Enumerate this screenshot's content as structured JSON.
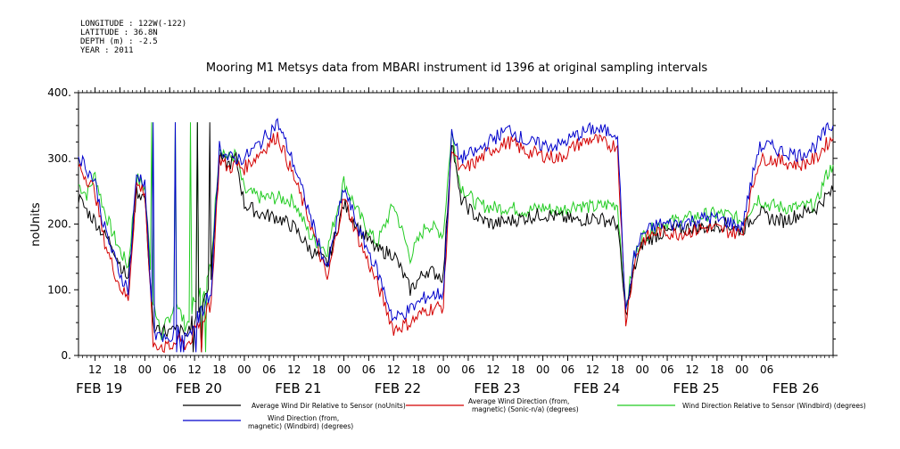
{
  "header": {
    "meta_lines": [
      "LONGITUDE : 122W(-122)",
      "LATITUDE : 36.8N",
      "DEPTH (m) : -2.5",
      "YEAR : 2011"
    ],
    "title": "Mooring M1 Metsys data from MBARI instrument id 1396 at original sampling intervals"
  },
  "chart_data": {
    "type": "line",
    "title": "Mooring M1 Metsys data from MBARI instrument id 1396 at original sampling intervals",
    "ylabel": "noUnits",
    "xlabel": "",
    "ylim": [
      0,
      400
    ],
    "yticks": [
      0,
      100,
      200,
      300,
      400
    ],
    "xlim_hours": [
      0,
      182
    ],
    "x_unit_note": "time in 2011, Feb 19 ~08:00 to Feb 26 ~12:00",
    "hour_tick_labels": [
      "12",
      "18",
      "00",
      "06",
      "12",
      "18",
      "00",
      "06",
      "12",
      "18",
      "00",
      "06",
      "12",
      "18",
      "00",
      "06",
      "12",
      "18",
      "00",
      "06",
      "12",
      "18",
      "00",
      "06",
      "12",
      "18",
      "00",
      "06"
    ],
    "date_labels": [
      "FEB 19",
      "FEB 20",
      "FEB 21",
      "FEB 22",
      "FEB 23",
      "FEB 24",
      "FEB 25",
      "FEB 26"
    ],
    "grid": false,
    "legend_position": "bottom",
    "series": [
      {
        "name": "Average Wind Dir Relative to Sensor (noUnits)",
        "color": "#000000",
        "points": [
          [
            0,
            240
          ],
          [
            2,
            220
          ],
          [
            4,
            205
          ],
          [
            6,
            185
          ],
          [
            8,
            170
          ],
          [
            10,
            140
          ],
          [
            12,
            115
          ],
          [
            14,
            250
          ],
          [
            16,
            240
          ],
          [
            18,
            45
          ],
          [
            20,
            40
          ],
          [
            22,
            35
          ],
          [
            24,
            40
          ],
          [
            26,
            30
          ],
          [
            28,
            60
          ],
          [
            30,
            80
          ],
          [
            32,
            120
          ],
          [
            34,
            300
          ],
          [
            36,
            290
          ],
          [
            38,
            300
          ],
          [
            40,
            230
          ],
          [
            44,
            215
          ],
          [
            48,
            210
          ],
          [
            52,
            195
          ],
          [
            56,
            160
          ],
          [
            60,
            140
          ],
          [
            64,
            230
          ],
          [
            68,
            190
          ],
          [
            72,
            160
          ],
          [
            76,
            155
          ],
          [
            80,
            100
          ],
          [
            84,
            130
          ],
          [
            88,
            120
          ],
          [
            90,
            330
          ],
          [
            92,
            240
          ],
          [
            96,
            210
          ],
          [
            100,
            200
          ],
          [
            104,
            205
          ],
          [
            108,
            210
          ],
          [
            112,
            215
          ],
          [
            116,
            210
          ],
          [
            120,
            205
          ],
          [
            124,
            210
          ],
          [
            128,
            205
          ],
          [
            130,
            200
          ],
          [
            132,
            60
          ],
          [
            134,
            130
          ],
          [
            136,
            170
          ],
          [
            140,
            185
          ],
          [
            144,
            190
          ],
          [
            148,
            195
          ],
          [
            152,
            195
          ],
          [
            156,
            200
          ],
          [
            160,
            190
          ],
          [
            164,
            220
          ],
          [
            166,
            210
          ],
          [
            170,
            205
          ],
          [
            174,
            215
          ],
          [
            178,
            225
          ],
          [
            180,
            240
          ],
          [
            182,
            250
          ]
        ]
      },
      {
        "name": "Average Wind Direction (from, magnetic) (Sonic-n/a) (degrees)",
        "color": "#d40000",
        "points": [
          [
            0,
            290
          ],
          [
            2,
            270
          ],
          [
            4,
            250
          ],
          [
            6,
            180
          ],
          [
            8,
            140
          ],
          [
            10,
            105
          ],
          [
            12,
            85
          ],
          [
            14,
            260
          ],
          [
            16,
            250
          ],
          [
            18,
            20
          ],
          [
            20,
            15
          ],
          [
            22,
            10
          ],
          [
            24,
            25
          ],
          [
            26,
            15
          ],
          [
            28,
            35
          ],
          [
            30,
            55
          ],
          [
            32,
            80
          ],
          [
            34,
            300
          ],
          [
            36,
            285
          ],
          [
            38,
            290
          ],
          [
            40,
            285
          ],
          [
            44,
            310
          ],
          [
            48,
            335
          ],
          [
            52,
            270
          ],
          [
            56,
            200
          ],
          [
            60,
            115
          ],
          [
            64,
            240
          ],
          [
            68,
            170
          ],
          [
            72,
            110
          ],
          [
            76,
            40
          ],
          [
            80,
            50
          ],
          [
            84,
            70
          ],
          [
            88,
            75
          ],
          [
            90,
            320
          ],
          [
            92,
            280
          ],
          [
            96,
            295
          ],
          [
            100,
            315
          ],
          [
            104,
            325
          ],
          [
            108,
            310
          ],
          [
            112,
            305
          ],
          [
            116,
            300
          ],
          [
            120,
            320
          ],
          [
            124,
            330
          ],
          [
            128,
            320
          ],
          [
            130,
            320
          ],
          [
            132,
            50
          ],
          [
            134,
            140
          ],
          [
            136,
            175
          ],
          [
            140,
            190
          ],
          [
            144,
            185
          ],
          [
            148,
            190
          ],
          [
            152,
            195
          ],
          [
            156,
            190
          ],
          [
            160,
            185
          ],
          [
            164,
            295
          ],
          [
            166,
            300
          ],
          [
            170,
            295
          ],
          [
            174,
            290
          ],
          [
            178,
            300
          ],
          [
            180,
            320
          ],
          [
            182,
            330
          ]
        ]
      },
      {
        "name": "Wind Direction Relative to Sensor (Windbird) (degrees)",
        "color": "#22cc22",
        "points": [
          [
            0,
            260
          ],
          [
            2,
            245
          ],
          [
            4,
            275
          ],
          [
            6,
            225
          ],
          [
            8,
            190
          ],
          [
            10,
            160
          ],
          [
            12,
            135
          ],
          [
            14,
            270
          ],
          [
            16,
            255
          ],
          [
            18,
            80
          ],
          [
            20,
            30
          ],
          [
            22,
            60
          ],
          [
            24,
            80
          ],
          [
            26,
            40
          ],
          [
            28,
            90
          ],
          [
            30,
            100
          ],
          [
            32,
            140
          ],
          [
            34,
            320
          ],
          [
            36,
            300
          ],
          [
            38,
            305
          ],
          [
            40,
            250
          ],
          [
            44,
            240
          ],
          [
            48,
            240
          ],
          [
            52,
            235
          ],
          [
            56,
            180
          ],
          [
            60,
            160
          ],
          [
            64,
            265
          ],
          [
            68,
            210
          ],
          [
            72,
            170
          ],
          [
            76,
            230
          ],
          [
            80,
            150
          ],
          [
            84,
            200
          ],
          [
            88,
            185
          ],
          [
            90,
            340
          ],
          [
            92,
            260
          ],
          [
            96,
            230
          ],
          [
            100,
            225
          ],
          [
            104,
            225
          ],
          [
            108,
            220
          ],
          [
            112,
            225
          ],
          [
            116,
            220
          ],
          [
            120,
            230
          ],
          [
            124,
            225
          ],
          [
            128,
            230
          ],
          [
            130,
            230
          ],
          [
            132,
            70
          ],
          [
            134,
            150
          ],
          [
            136,
            180
          ],
          [
            140,
            200
          ],
          [
            144,
            205
          ],
          [
            148,
            210
          ],
          [
            152,
            215
          ],
          [
            156,
            215
          ],
          [
            160,
            205
          ],
          [
            164,
            240
          ],
          [
            166,
            230
          ],
          [
            170,
            225
          ],
          [
            174,
            225
          ],
          [
            178,
            230
          ],
          [
            180,
            270
          ],
          [
            182,
            290
          ]
        ]
      },
      {
        "name": "Wind Direction (from, magnetic) (Windbird) (degrees)",
        "color": "#0000cc",
        "points": [
          [
            0,
            305
          ],
          [
            2,
            285
          ],
          [
            4,
            265
          ],
          [
            6,
            200
          ],
          [
            8,
            160
          ],
          [
            10,
            125
          ],
          [
            12,
            100
          ],
          [
            14,
            275
          ],
          [
            16,
            265
          ],
          [
            18,
            35
          ],
          [
            20,
            25
          ],
          [
            22,
            20
          ],
          [
            24,
            40
          ],
          [
            26,
            25
          ],
          [
            28,
            50
          ],
          [
            30,
            70
          ],
          [
            32,
            100
          ],
          [
            34,
            320
          ],
          [
            36,
            300
          ],
          [
            38,
            300
          ],
          [
            40,
            300
          ],
          [
            44,
            325
          ],
          [
            48,
            355
          ],
          [
            52,
            290
          ],
          [
            56,
            210
          ],
          [
            60,
            130
          ],
          [
            64,
            255
          ],
          [
            68,
            185
          ],
          [
            72,
            130
          ],
          [
            76,
            55
          ],
          [
            80,
            70
          ],
          [
            84,
            90
          ],
          [
            88,
            95
          ],
          [
            90,
            335
          ],
          [
            92,
            300
          ],
          [
            96,
            310
          ],
          [
            100,
            330
          ],
          [
            104,
            345
          ],
          [
            108,
            325
          ],
          [
            112,
            320
          ],
          [
            116,
            320
          ],
          [
            120,
            335
          ],
          [
            124,
            345
          ],
          [
            128,
            340
          ],
          [
            130,
            340
          ],
          [
            132,
            60
          ],
          [
            134,
            150
          ],
          [
            136,
            185
          ],
          [
            140,
            200
          ],
          [
            144,
            200
          ],
          [
            148,
            205
          ],
          [
            152,
            210
          ],
          [
            156,
            205
          ],
          [
            160,
            195
          ],
          [
            164,
            315
          ],
          [
            166,
            320
          ],
          [
            170,
            310
          ],
          [
            174,
            305
          ],
          [
            178,
            320
          ],
          [
            180,
            340
          ],
          [
            182,
            350
          ]
        ]
      }
    ]
  }
}
